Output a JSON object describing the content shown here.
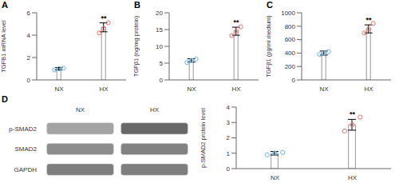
{
  "chart_data": [
    {
      "type": "bar",
      "title": "A",
      "categories": [
        "NX",
        "HX"
      ],
      "values": [
        1.0,
        4.7
      ],
      "errors": [
        0.1,
        0.4
      ],
      "points": [
        {
          "category": "NX",
          "color": "#6db3e8",
          "values": [
            0.9,
            1.0,
            1.05
          ]
        },
        {
          "category": "HX",
          "color": "#e87070",
          "values": [
            4.2,
            4.6,
            5.1
          ]
        }
      ],
      "ylabel": "TGFB1 mRNA level",
      "ylim": [
        0,
        6
      ],
      "yticks": [
        0,
        2,
        4,
        6
      ],
      "annotations": [
        {
          "category": "HX",
          "text": "**"
        }
      ],
      "color": "white",
      "grid": false
    },
    {
      "type": "bar",
      "title": "B",
      "categories": [
        "NX",
        "HX"
      ],
      "values": [
        5.8,
        14.5
      ],
      "errors": [
        0.5,
        1.2
      ],
      "points": [
        {
          "category": "NX",
          "color": "#6db3e8",
          "values": [
            5.2,
            5.8,
            6.2
          ]
        },
        {
          "category": "HX",
          "color": "#e87070",
          "values": [
            13.2,
            14.5,
            15.8
          ]
        }
      ],
      "ylabel": "TGFβ1 (ng/mg protein)",
      "ylim": [
        0,
        20
      ],
      "yticks": [
        0,
        5,
        10,
        15,
        20
      ],
      "annotations": [
        {
          "category": "HX",
          "text": "**"
        }
      ],
      "color": "white",
      "grid": false
    },
    {
      "type": "bar",
      "title": "C",
      "categories": [
        "NX",
        "HX"
      ],
      "values": [
        400,
        760
      ],
      "errors": [
        30,
        60
      ],
      "points": [
        {
          "category": "NX",
          "color": "#6db3e8",
          "values": [
            380,
            400,
            420
          ]
        },
        {
          "category": "HX",
          "color": "#e87070",
          "values": [
            700,
            760,
            840
          ]
        }
      ],
      "ylabel": "TGFβ1 (pg/ml medium)",
      "ylim": [
        0,
        1000
      ],
      "yticks": [
        0,
        200,
        400,
        600,
        800,
        1000
      ],
      "annotations": [
        {
          "category": "HX",
          "text": "**"
        }
      ],
      "color": "white",
      "grid": false
    },
    {
      "type": "heatmap",
      "title": "D",
      "categories": [
        "NX",
        "HX"
      ],
      "series": [
        {
          "name": "p-SMAD2",
          "values": [
            0.5,
            0.82
          ]
        },
        {
          "name": "SMAD2",
          "values": [
            0.62,
            0.68
          ]
        },
        {
          "name": "GAPDH",
          "values": [
            0.7,
            0.7
          ]
        }
      ]
    },
    {
      "type": "bar",
      "categories": [
        "NX",
        "HX"
      ],
      "values": [
        1.0,
        2.85
      ],
      "errors": [
        0.12,
        0.35
      ],
      "points": [
        {
          "category": "NX",
          "color": "#6db3e8",
          "values": [
            0.9,
            1.0,
            1.05
          ]
        },
        {
          "category": "HX",
          "color": "#e87070",
          "values": [
            2.45,
            2.85,
            3.35
          ]
        }
      ],
      "ylabel": "p-SMAD2 protein level",
      "ylim": [
        0,
        4
      ],
      "yticks": [
        0,
        1,
        2,
        3,
        4
      ],
      "annotations": [
        {
          "category": "HX",
          "text": "**"
        }
      ],
      "color": "white",
      "grid": false
    }
  ]
}
